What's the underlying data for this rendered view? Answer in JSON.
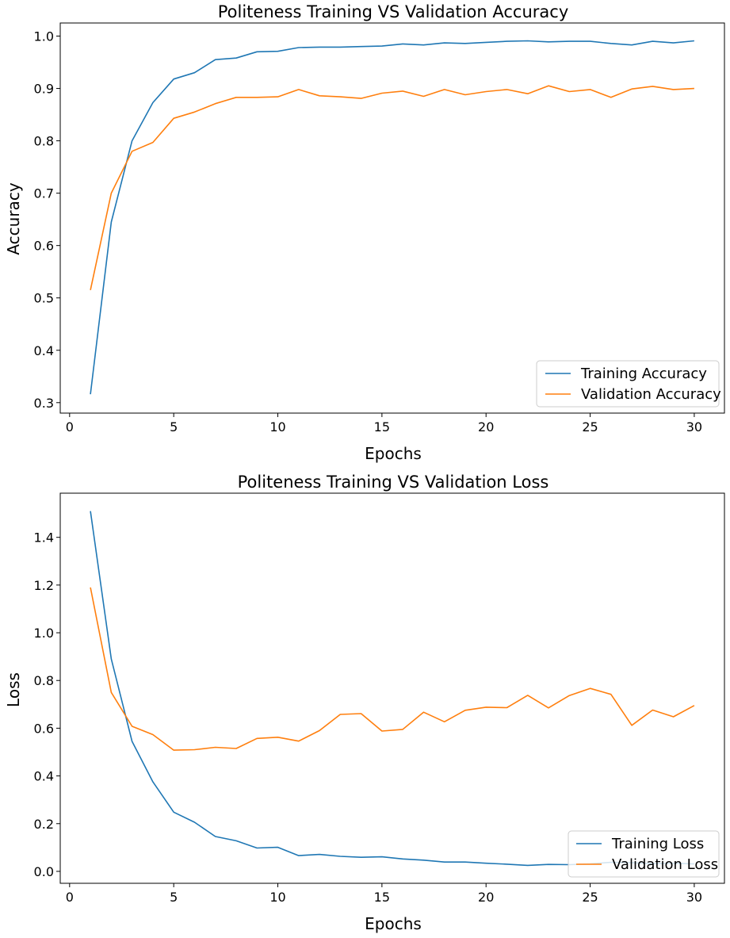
{
  "chart_data": [
    {
      "type": "line",
      "title": "Politeness Training VS Validation Accuracy",
      "xlabel": "Epochs",
      "ylabel": "Accuracy",
      "xlim": [
        -0.45,
        31.45
      ],
      "ylim": [
        0.28,
        1.025
      ],
      "xticks": [
        0,
        5,
        10,
        15,
        20,
        25,
        30
      ],
      "yticks": [
        0.3,
        0.4,
        0.5,
        0.6,
        0.7,
        0.8,
        0.9,
        1.0
      ],
      "ytick_labels": [
        "0.3",
        "0.4",
        "0.5",
        "0.6",
        "0.7",
        "0.8",
        "0.9",
        "1.0"
      ],
      "grid": false,
      "legend_position": "bottom-right",
      "x": [
        1,
        2,
        3,
        4,
        5,
        6,
        7,
        8,
        9,
        10,
        11,
        12,
        13,
        14,
        15,
        16,
        17,
        18,
        19,
        20,
        21,
        22,
        23,
        24,
        25,
        26,
        27,
        28,
        29,
        30
      ],
      "series": [
        {
          "name": "Training Accuracy",
          "color": "#1f77b4",
          "values": [
            0.316,
            0.645,
            0.8,
            0.873,
            0.918,
            0.93,
            0.955,
            0.958,
            0.97,
            0.971,
            0.978,
            0.979,
            0.979,
            0.98,
            0.981,
            0.985,
            0.983,
            0.987,
            0.986,
            0.988,
            0.99,
            0.991,
            0.989,
            0.99,
            0.99,
            0.986,
            0.983,
            0.99,
            0.987,
            0.991
          ]
        },
        {
          "name": "Validation Accuracy",
          "color": "#ff7f0e",
          "values": [
            0.515,
            0.7,
            0.78,
            0.797,
            0.843,
            0.855,
            0.871,
            0.883,
            0.883,
            0.884,
            0.898,
            0.886,
            0.884,
            0.881,
            0.891,
            0.895,
            0.885,
            0.898,
            0.888,
            0.894,
            0.898,
            0.89,
            0.905,
            0.894,
            0.898,
            0.883,
            0.899,
            0.904,
            0.898,
            0.9
          ]
        }
      ]
    },
    {
      "type": "line",
      "title": "Politeness Training VS Validation Loss",
      "xlabel": "Epochs",
      "ylabel": "Loss",
      "xlim": [
        -0.45,
        31.45
      ],
      "ylim": [
        -0.05,
        1.585
      ],
      "xticks": [
        0,
        5,
        10,
        15,
        20,
        25,
        30
      ],
      "yticks": [
        0.0,
        0.2,
        0.4,
        0.6,
        0.8,
        1.0,
        1.2,
        1.4
      ],
      "ytick_labels": [
        "0.0",
        "0.2",
        "0.4",
        "0.6",
        "0.8",
        "1.0",
        "1.2",
        "1.4"
      ],
      "grid": false,
      "legend_position": "bottom-right",
      "x": [
        1,
        2,
        3,
        4,
        5,
        6,
        7,
        8,
        9,
        10,
        11,
        12,
        13,
        14,
        15,
        16,
        17,
        18,
        19,
        20,
        21,
        22,
        23,
        24,
        25,
        26,
        27,
        28,
        29,
        30
      ],
      "series": [
        {
          "name": "Training Loss",
          "color": "#1f77b4",
          "values": [
            1.51,
            0.89,
            0.545,
            0.375,
            0.248,
            0.206,
            0.146,
            0.128,
            0.098,
            0.101,
            0.066,
            0.071,
            0.063,
            0.059,
            0.061,
            0.052,
            0.047,
            0.039,
            0.039,
            0.034,
            0.03,
            0.025,
            0.029,
            0.028,
            0.031,
            0.038,
            0.036,
            0.032,
            0.034,
            0.031
          ]
        },
        {
          "name": "Validation Loss",
          "color": "#ff7f0e",
          "values": [
            1.19,
            0.75,
            0.608,
            0.573,
            0.508,
            0.51,
            0.52,
            0.515,
            0.557,
            0.562,
            0.546,
            0.59,
            0.658,
            0.661,
            0.588,
            0.595,
            0.667,
            0.627,
            0.675,
            0.688,
            0.686,
            0.738,
            0.685,
            0.737,
            0.767,
            0.742,
            0.612,
            0.676,
            0.648,
            0.695
          ]
        }
      ]
    }
  ]
}
